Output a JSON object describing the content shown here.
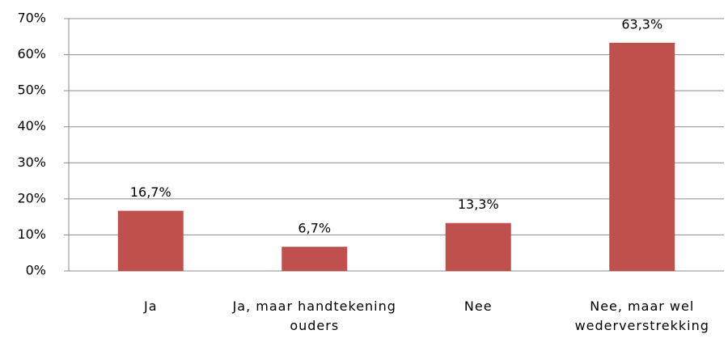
{
  "chart_data": {
    "type": "bar",
    "categories": [
      "Ja",
      "Ja, maar handtekening ouders",
      "Nee",
      "Nee, maar wel wederverstrekking"
    ],
    "values": [
      16.7,
      6.7,
      13.3,
      63.3
    ],
    "value_labels": [
      "16,7%",
      "6,7%",
      "13,3%",
      "63,3%"
    ],
    "color": "#c0504d",
    "ylim": [
      0,
      70
    ],
    "yticks": [
      {
        "value": 0,
        "label": "0%"
      },
      {
        "value": 10,
        "label": "10%"
      },
      {
        "value": 20,
        "label": "20%"
      },
      {
        "value": 30,
        "label": "30%"
      },
      {
        "value": 40,
        "label": "40%"
      },
      {
        "value": 50,
        "label": "50%"
      },
      {
        "value": 60,
        "label": "60%"
      },
      {
        "value": 70,
        "label": "70%"
      }
    ],
    "grid": true
  }
}
